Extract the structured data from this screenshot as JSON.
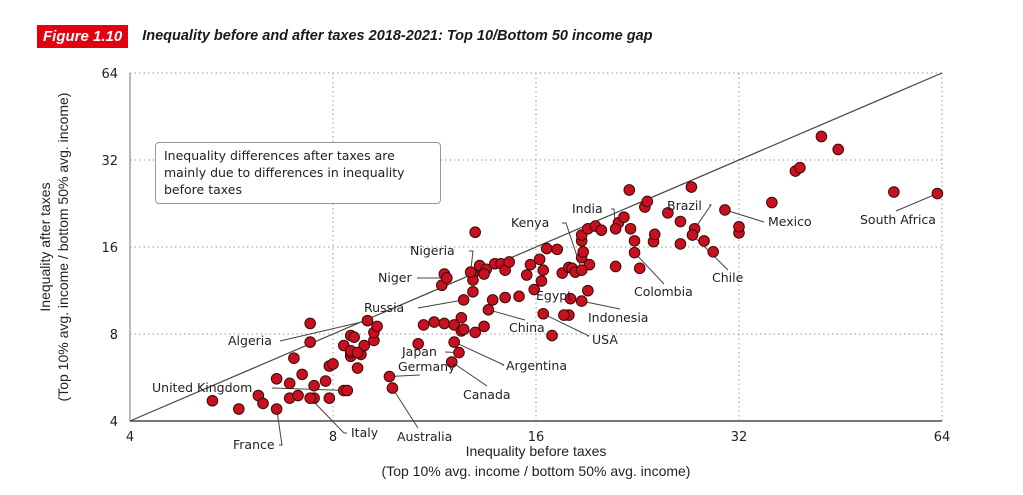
{
  "figure": {
    "badge": "Figure 1.10",
    "title": "Inequality before and after taxes 2018-2021: Top 10/Bottom 50 income gap",
    "accent_color": "#e3000f"
  },
  "annotation": "Inequality differences after taxes are mainly due to differences in inequality before taxes",
  "chart_data": {
    "type": "scatter",
    "title": "Inequality before and after taxes 2018-2021: Top 10/Bottom 50 income gap",
    "xlabel": "Inequality before taxes",
    "xlabel_sub": "(Top 10% avg. income / bottom 50% avg. income)",
    "ylabel": "Inequality after taxes",
    "ylabel_sub": "(Top 10% avg. income / bottom 50% avg. income)",
    "xscale": "log2",
    "yscale": "log2",
    "xlim": [
      4,
      64
    ],
    "ylim": [
      4,
      64
    ],
    "xticks": [
      4,
      8,
      16,
      32,
      64
    ],
    "yticks": [
      4,
      8,
      16,
      32,
      64
    ],
    "grid": "dotted",
    "reference_line": "y = x",
    "marker_color": "#c8101e",
    "labeled_points": [
      {
        "name": "South Africa",
        "x": 63.0,
        "y": 24.5
      },
      {
        "name": "Mexico",
        "x": 30.5,
        "y": 21.5
      },
      {
        "name": "Brazil",
        "x": 27.5,
        "y": 18.5
      },
      {
        "name": "Chile",
        "x": 27.3,
        "y": 17.6
      },
      {
        "name": "India",
        "x": 21.0,
        "y": 18.5
      },
      {
        "name": "Colombia",
        "x": 22.4,
        "y": 15.3
      },
      {
        "name": "Kenya",
        "x": 18.7,
        "y": 13.3
      },
      {
        "name": "Indonesia",
        "x": 18.7,
        "y": 10.4
      },
      {
        "name": "USA",
        "x": 16.4,
        "y": 9.4
      },
      {
        "name": "Egypt",
        "x": 15.9,
        "y": 11.4
      },
      {
        "name": "China",
        "x": 13.6,
        "y": 9.7
      },
      {
        "name": "Nigeria",
        "x": 12.8,
        "y": 13.1
      },
      {
        "name": "Niger",
        "x": 11.8,
        "y": 12.5
      },
      {
        "name": "Russia",
        "x": 12.5,
        "y": 10.5
      },
      {
        "name": "Algeria",
        "x": 9.0,
        "y": 8.9
      },
      {
        "name": "Japan",
        "x": 12.3,
        "y": 6.9
      },
      {
        "name": "Argentina",
        "x": 12.1,
        "y": 7.5
      },
      {
        "name": "Germany",
        "x": 9.7,
        "y": 5.7
      },
      {
        "name": "Canada",
        "x": 12.0,
        "y": 6.4
      },
      {
        "name": "Australia",
        "x": 9.8,
        "y": 5.2
      },
      {
        "name": "United Kingdom",
        "x": 8.4,
        "y": 5.1
      },
      {
        "name": "Italy",
        "x": 7.4,
        "y": 4.8
      },
      {
        "name": "France",
        "x": 6.6,
        "y": 4.4
      }
    ],
    "other_points": [
      [
        5.3,
        4.7
      ],
      [
        5.8,
        4.4
      ],
      [
        6.2,
        4.9
      ],
      [
        6.3,
        4.6
      ],
      [
        6.9,
        4.8
      ],
      [
        7.1,
        4.9
      ],
      [
        7.5,
        4.8
      ],
      [
        7.9,
        4.8
      ],
      [
        8.3,
        5.1
      ],
      [
        6.6,
        5.6
      ],
      [
        6.9,
        5.4
      ],
      [
        7.2,
        5.8
      ],
      [
        7.5,
        5.3
      ],
      [
        7.8,
        5.5
      ],
      [
        7.9,
        6.2
      ],
      [
        8.7,
        6.1
      ],
      [
        7.0,
        6.6
      ],
      [
        8.0,
        6.3
      ],
      [
        8.5,
        6.7
      ],
      [
        8.5,
        6.9
      ],
      [
        8.8,
        6.8
      ],
      [
        8.3,
        7.3
      ],
      [
        8.9,
        7.3
      ],
      [
        9.2,
        7.6
      ],
      [
        7.4,
        8.7
      ],
      [
        7.4,
        7.5
      ],
      [
        8.5,
        7.0
      ],
      [
        8.7,
        6.9
      ],
      [
        8.5,
        7.9
      ],
      [
        8.6,
        7.8
      ],
      [
        9.2,
        8.1
      ],
      [
        9.3,
        8.5
      ],
      [
        10.7,
        7.4
      ],
      [
        10.9,
        8.6
      ],
      [
        11.3,
        8.8
      ],
      [
        11.7,
        8.7
      ],
      [
        12.1,
        8.6
      ],
      [
        12.4,
        8.2
      ],
      [
        12.5,
        8.3
      ],
      [
        13.0,
        8.1
      ],
      [
        13.4,
        8.5
      ],
      [
        12.4,
        9.1
      ],
      [
        11.7,
        12.9
      ],
      [
        11.6,
        11.8
      ],
      [
        12.9,
        11.2
      ],
      [
        12.9,
        12.9
      ],
      [
        12.9,
        12.3
      ],
      [
        13.2,
        13.8
      ],
      [
        13.5,
        13.4
      ],
      [
        13.9,
        14.0
      ],
      [
        14.2,
        14.0
      ],
      [
        14.4,
        13.3
      ],
      [
        14.6,
        14.2
      ],
      [
        13.0,
        18.0
      ],
      [
        13.4,
        12.9
      ],
      [
        13.8,
        10.5
      ],
      [
        14.4,
        10.7
      ],
      [
        15.1,
        10.8
      ],
      [
        15.5,
        12.8
      ],
      [
        15.7,
        13.9
      ],
      [
        16.4,
        13.3
      ],
      [
        16.2,
        14.5
      ],
      [
        16.6,
        15.8
      ],
      [
        17.2,
        15.7
      ],
      [
        16.3,
        12.2
      ],
      [
        17.5,
        13.0
      ],
      [
        17.9,
        13.6
      ],
      [
        18.1,
        13.5
      ],
      [
        18.3,
        13.1
      ],
      [
        18.7,
        14.7
      ],
      [
        18.8,
        15.4
      ],
      [
        18.7,
        16.8
      ],
      [
        18.7,
        17.6
      ],
      [
        19.1,
        18.5
      ],
      [
        19.6,
        18.9
      ],
      [
        20.0,
        18.3
      ],
      [
        19.2,
        13.9
      ],
      [
        17.9,
        9.3
      ],
      [
        17.6,
        9.3
      ],
      [
        16.9,
        7.9
      ],
      [
        19.1,
        11.3
      ],
      [
        18.0,
        10.6
      ],
      [
        21.2,
        19.4
      ],
      [
        21.6,
        20.3
      ],
      [
        22.0,
        25.2
      ],
      [
        22.1,
        18.5
      ],
      [
        23.2,
        22.0
      ],
      [
        23.4,
        23.0
      ],
      [
        23.9,
        16.7
      ],
      [
        24.0,
        17.7
      ],
      [
        25.1,
        21.0
      ],
      [
        22.4,
        16.8
      ],
      [
        22.8,
        13.5
      ],
      [
        21.0,
        13.7
      ],
      [
        26.2,
        19.6
      ],
      [
        26.2,
        16.4
      ],
      [
        27.2,
        25.8
      ],
      [
        28.4,
        16.8
      ],
      [
        29.3,
        15.4
      ],
      [
        32.0,
        17.9
      ],
      [
        32.0,
        18.8
      ],
      [
        35.8,
        22.8
      ],
      [
        38.8,
        29.3
      ],
      [
        39.4,
        30.1
      ],
      [
        42.4,
        38.6
      ],
      [
        44.9,
        34.8
      ],
      [
        54.3,
        24.8
      ]
    ]
  }
}
